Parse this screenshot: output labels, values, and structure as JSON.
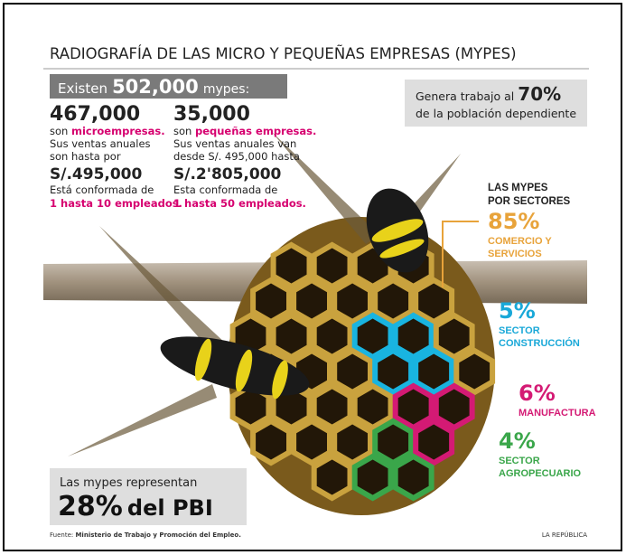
{
  "header": {
    "title": "RADIOGRAFÍA DE LAS MICRO Y PEQUEÑAS EMPRESAS (MYPES)"
  },
  "total": {
    "prefix": "Existen",
    "value": "502,000",
    "suffix": "mypes:"
  },
  "micro": {
    "count": "467,000",
    "son": "son",
    "type": "microempresas.",
    "sales": [
      "Sus ventas anuales",
      "son hasta por"
    ],
    "amount": "S/.495,000",
    "staff_intro": "Está conformada de",
    "staff": "1 hasta 10 empleados."
  },
  "small": {
    "count": "35,000",
    "son": "son",
    "type": "pequeñas empresas.",
    "sales": [
      "Sus ventas anuales van",
      "desde S/. 495,000 hasta"
    ],
    "amount": "S/.2'805,000",
    "staff_intro": "Esta conformada de",
    "staff": "1 hasta 50 empleados."
  },
  "employment": {
    "prefix": "Genera trabajo al",
    "value": "70%",
    "suffix": "de la población dependiente"
  },
  "sectors": {
    "title": [
      "LAS MYPES",
      "POR SECTORES"
    ],
    "items": [
      {
        "share": "85%",
        "label": [
          "COMERCIO Y",
          "SERVICIOS"
        ]
      },
      {
        "share": "5%",
        "label": [
          "SECTOR",
          "CONSTRUCCIÓN"
        ]
      },
      {
        "share": "6%",
        "label": [
          "MANUFACTURA"
        ]
      },
      {
        "share": "4%",
        "label": [
          "SECTOR",
          "AGROPECUARIO"
        ]
      }
    ]
  },
  "gdp": {
    "line1": "Las mypes representan",
    "value": "28%",
    "suffix": "del PBI"
  },
  "footer": {
    "source_label": "Fuente:",
    "source": "Ministerio de Trabajo y Promoción del Empleo.",
    "credit": "LA REPÚBLICA"
  }
}
